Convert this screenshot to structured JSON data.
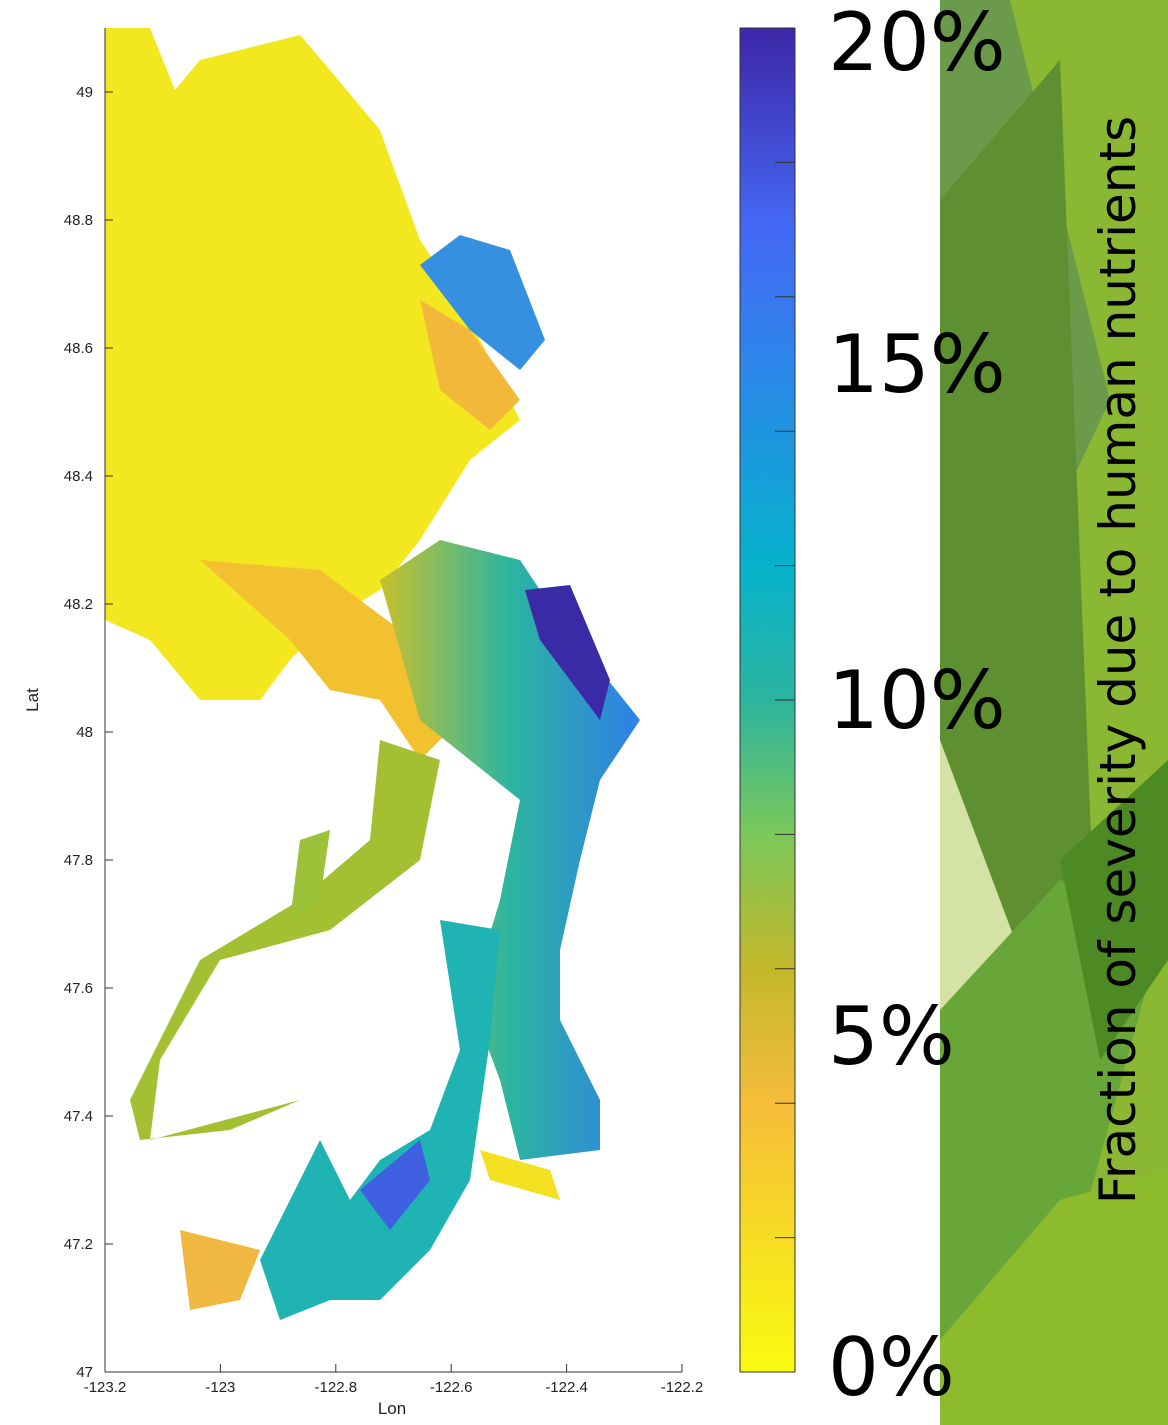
{
  "map": {
    "xlabel": "Lon",
    "ylabel": "Lat",
    "xlim": [
      -123.2,
      -122.2
    ],
    "ylim": [
      47,
      49.1
    ],
    "xticks": [
      -123.2,
      -123,
      -122.8,
      -122.6,
      -122.4,
      -122.2
    ],
    "yticks": [
      47,
      47.2,
      47.4,
      47.6,
      47.8,
      48,
      48.2,
      48.4,
      48.6,
      48.8,
      49
    ],
    "colorbar": {
      "lim": [
        0,
        20
      ],
      "ticks": [
        {
          "value": 0,
          "label": "0%"
        },
        {
          "value": 5,
          "label": "5%"
        },
        {
          "value": 10,
          "label": "10%"
        },
        {
          "value": 15,
          "label": "15%"
        },
        {
          "value": 20,
          "label": "20%"
        }
      ],
      "minor_ticks": [
        2,
        4,
        6,
        8,
        10,
        12,
        14,
        16,
        18
      ],
      "label": "Fraction of severity due to human nutrients"
    }
  }
}
